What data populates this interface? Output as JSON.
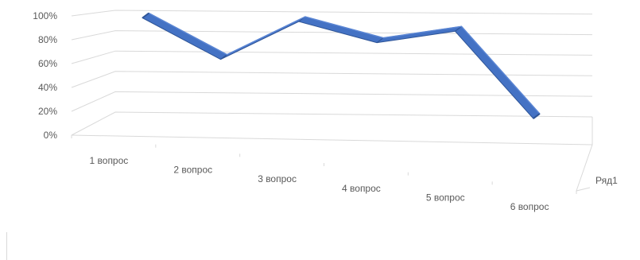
{
  "chart_data": {
    "type": "line",
    "style": "3d-ribbon",
    "categories": [
      "1 вопрос",
      "2 вопрос",
      "3 вопрос",
      "4 вопрос",
      "5 вопрос",
      "6 вопрос"
    ],
    "y_ticks": [
      "0%",
      "20%",
      "40%",
      "60%",
      "80%",
      "100%"
    ],
    "ylim": [
      0,
      1
    ],
    "grid": true,
    "series": [
      {
        "name": "Ряд1",
        "values": [
          1.0,
          0.6,
          0.98,
          0.78,
          0.9,
          0.05
        ],
        "color": "#4472c4"
      }
    ]
  }
}
